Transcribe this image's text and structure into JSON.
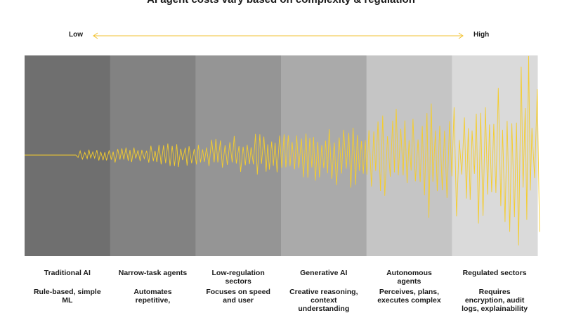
{
  "title": "AI agent costs vary based on complexity & regulation",
  "scale": {
    "low": "Low",
    "high": "High"
  },
  "columns": [
    {
      "label": "Traditional AI",
      "description": "Rule-based, simple ML"
    },
    {
      "label": "Narrow-task agents",
      "description": "Automates repetitive,"
    },
    {
      "label": "Low-regulation sectors",
      "description": "Focuses on speed and user"
    },
    {
      "label": "Generative AI",
      "description": "Creative reasoning, context understanding"
    },
    {
      "label": "Autonomous agents",
      "description": "Perceives, plans, executes complex"
    },
    {
      "label": "Regulated sectors",
      "description": "Requires encryption, audit logs, explainability"
    }
  ]
}
